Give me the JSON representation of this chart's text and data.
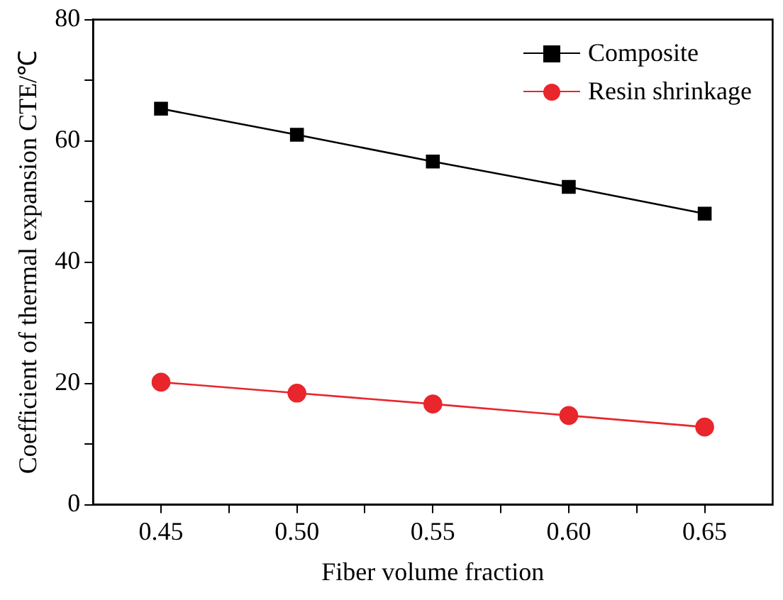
{
  "chart_data": {
    "type": "line",
    "xlabel": "Fiber volume fraction",
    "ylabel": "Coefficient of thermal expansion CTE/℃",
    "x": [
      0.45,
      0.5,
      0.55,
      0.6,
      0.65
    ],
    "series": [
      {
        "name": "Composite",
        "color": "#000000",
        "values": [
          65.3,
          61.0,
          56.6,
          52.4,
          48.0
        ],
        "marker": "square"
      },
      {
        "name": "Resin shrinkage",
        "color": "#e8262b",
        "values": [
          20.2,
          18.4,
          16.6,
          14.7,
          12.8
        ],
        "marker": "circle"
      }
    ],
    "xlim": [
      0.425,
      0.675
    ],
    "xticks": [
      {
        "value": 0.45,
        "label": "0.45"
      },
      {
        "value": 0.475,
        "label": null
      },
      {
        "value": 0.5,
        "label": "0.50"
      },
      {
        "value": 0.525,
        "label": null
      },
      {
        "value": 0.55,
        "label": "0.55"
      },
      {
        "value": 0.575,
        "label": null
      },
      {
        "value": 0.6,
        "label": "0.60"
      },
      {
        "value": 0.625,
        "label": null
      },
      {
        "value": 0.65,
        "label": "0.65"
      }
    ],
    "ylim": [
      0,
      80
    ],
    "yticks": [
      0,
      {
        "value": 10,
        "label": null
      },
      20,
      {
        "value": 30,
        "label": null
      },
      40,
      {
        "value": 50,
        "label": null
      },
      60,
      {
        "value": 70,
        "label": null
      },
      80
    ],
    "legend": "top right",
    "grid": false,
    "line_style": "solid"
  }
}
